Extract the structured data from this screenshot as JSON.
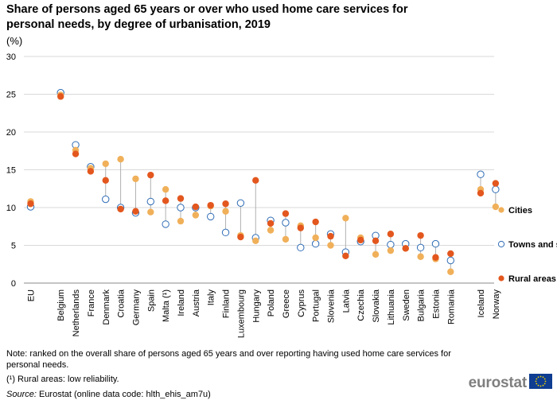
{
  "header": {
    "title": "Share of persons aged 65 years or over who used home care services for personal needs, by degree of urbanisation, 2019",
    "unit": "(%)"
  },
  "chart_data": {
    "type": "scatter",
    "title": "Share of persons aged 65 years or over who used home care services for personal needs, by degree of urbanisation, 2019",
    "ylabel": "(%)",
    "ylim": [
      0,
      30
    ],
    "yticks": [
      0,
      5,
      10,
      15,
      20,
      25,
      30
    ],
    "grid": true,
    "legend_position": "right",
    "categories": [
      "EU",
      "",
      "Belgium",
      "Netherlands",
      "France",
      "Denmark",
      "Croatia",
      "Germany",
      "Spain",
      "Malta (¹)",
      "Ireland",
      "Austria",
      "Italy",
      "Finland",
      "Luxembourg",
      "Hungary",
      "Poland",
      "Greece",
      "Cyprus",
      "Portugal",
      "Slovenia",
      "Latvia",
      "Czechia",
      "Slovakia",
      "Lithuania",
      "Sweden",
      "Bulgaria",
      "Estonia",
      "Romania",
      "",
      "Iceland",
      "Norway"
    ],
    "series": [
      {
        "name": "Cities",
        "marker": "filled",
        "color": "#f0b05a",
        "values": [
          10.8,
          null,
          24.9,
          17.6,
          15.2,
          15.8,
          16.4,
          13.8,
          9.4,
          12.4,
          8.2,
          9.0,
          10.2,
          9.5,
          6.3,
          5.6,
          7.0,
          5.8,
          7.6,
          6.0,
          5.0,
          8.6,
          6.0,
          3.8,
          4.3,
          4.6,
          3.5,
          3.2,
          1.5,
          null,
          12.4,
          10.1
        ]
      },
      {
        "name": "Towns and suburbs",
        "marker": "hollow",
        "color": "#2f6cb5",
        "values": [
          10.1,
          null,
          25.2,
          18.3,
          15.4,
          11.1,
          10.0,
          9.3,
          10.8,
          7.8,
          10.0,
          10.0,
          8.8,
          6.7,
          10.6,
          6.0,
          8.3,
          8.0,
          4.7,
          5.2,
          6.5,
          4.1,
          5.5,
          6.3,
          5.1,
          5.2,
          4.7,
          5.2,
          3.0,
          null,
          14.4,
          12.4
        ]
      },
      {
        "name": "Rural areas",
        "marker": "filled",
        "color": "#e3571e",
        "values": [
          10.5,
          null,
          24.7,
          17.1,
          14.8,
          13.6,
          9.8,
          9.5,
          14.3,
          10.9,
          11.2,
          10.1,
          10.3,
          10.5,
          6.1,
          13.6,
          7.9,
          9.2,
          7.3,
          8.1,
          6.2,
          3.6,
          5.7,
          5.6,
          6.5,
          4.6,
          6.3,
          3.4,
          3.9,
          null,
          11.9,
          13.2
        ]
      }
    ]
  },
  "legend": [
    {
      "label": "Cities",
      "marker": "filled",
      "color": "#f0b05a"
    },
    {
      "label": "Towns and suburbs",
      "marker": "hollow",
      "color": "#2f6cb5"
    },
    {
      "label": "Rural areas",
      "marker": "filled",
      "color": "#e3571e"
    }
  ],
  "notes": {
    "note": "Note: ranked on the overall share of persons aged 65 years and over reporting having used home care services for personal needs.",
    "footnote": "(¹) Rural areas: low reliability.",
    "source_label": "Source:",
    "source_text": " Eurostat (online data code: hlth_ehis_am7u)"
  },
  "brand": {
    "name": "eurostat",
    "flag_color": "#0e3d91",
    "star_color": "#f5d500"
  }
}
